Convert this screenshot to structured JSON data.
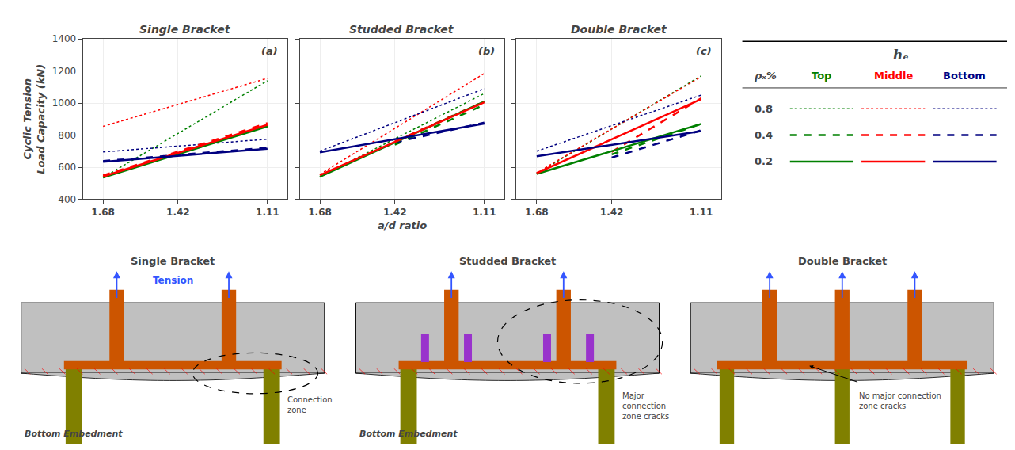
{
  "chart_data": [
    {
      "type": "line",
      "title": "Single Bracket",
      "annotation": "(a)",
      "xlim": [
        1.75,
        1.04
      ],
      "xticks": [
        1.68,
        1.42,
        1.11
      ],
      "ylim": [
        400,
        1400
      ],
      "yticks": [
        400,
        600,
        800,
        1000,
        1200,
        1400
      ],
      "ylabel": "Cyclic Tension\nLoad Capacity (kN)",
      "grid": true,
      "series": [
        {
          "color": "#008000",
          "line_style": "dotted",
          "x": [
            1.68,
            1.11
          ],
          "values": [
            535,
            1140
          ]
        },
        {
          "color": "#FF0000",
          "line_style": "dotted",
          "x": [
            1.68,
            1.11
          ],
          "values": [
            855,
            1155
          ]
        },
        {
          "color": "#000080",
          "line_style": "dotted",
          "x": [
            1.68,
            1.11
          ],
          "values": [
            695,
            775
          ]
        },
        {
          "color": "#008000",
          "line_style": "dashed",
          "x": [
            1.68,
            1.11
          ],
          "values": [
            540,
            860
          ]
        },
        {
          "color": "#FF0000",
          "line_style": "dashed",
          "x": [
            1.68,
            1.11
          ],
          "values": [
            548,
            875
          ]
        },
        {
          "color": "#000080",
          "line_style": "dashed",
          "x": [
            1.68,
            1.11
          ],
          "values": [
            638,
            722
          ]
        },
        {
          "color": "#008000",
          "line_style": "solid",
          "x": [
            1.68,
            1.11
          ],
          "values": [
            536,
            855
          ]
        },
        {
          "color": "#FF0000",
          "line_style": "solid",
          "x": [
            1.68,
            1.11
          ],
          "values": [
            542,
            865
          ]
        },
        {
          "color": "#000080",
          "line_style": "solid",
          "x": [
            1.68,
            1.11
          ],
          "values": [
            634,
            715
          ]
        }
      ]
    },
    {
      "type": "line",
      "title": "Studded Bracket",
      "annotation": "(b)",
      "xlim": [
        1.75,
        1.04
      ],
      "xticks": [
        1.68,
        1.42,
        1.11
      ],
      "ylim": [
        400,
        1400
      ],
      "yticks": [
        400,
        600,
        800,
        1000,
        1200,
        1400
      ],
      "grid": true,
      "tick_labels": "x",
      "series": [
        {
          "color": "#008000",
          "line_style": "dotted",
          "x": [
            1.68,
            1.11
          ],
          "values": [
            540,
            1060
          ]
        },
        {
          "color": "#FF0000",
          "line_style": "dotted",
          "x": [
            1.68,
            1.11
          ],
          "values": [
            555,
            1185
          ]
        },
        {
          "color": "#000080",
          "line_style": "dotted",
          "x": [
            1.68,
            1.11
          ],
          "values": [
            700,
            1090
          ]
        },
        {
          "color": "#008000",
          "line_style": "dashed",
          "x": [
            1.42,
            1.11
          ],
          "values": [
            740,
            990
          ]
        },
        {
          "color": "#FF0000",
          "line_style": "dashed",
          "x": [
            1.42,
            1.11
          ],
          "values": [
            760,
            1010
          ]
        },
        {
          "color": "#000080",
          "line_style": "dashed",
          "x": [
            1.42,
            1.11
          ],
          "values": [
            755,
            878
          ]
        },
        {
          "color": "#008000",
          "line_style": "solid",
          "x": [
            1.68,
            1.11
          ],
          "values": [
            540,
            1010
          ]
        },
        {
          "color": "#FF0000",
          "line_style": "solid",
          "x": [
            1.68,
            1.11
          ],
          "values": [
            550,
            1005
          ]
        },
        {
          "color": "#000080",
          "line_style": "solid",
          "x": [
            1.68,
            1.11
          ],
          "values": [
            693,
            872
          ]
        }
      ]
    },
    {
      "type": "line",
      "title": "Double Bracket",
      "annotation": "(c)",
      "xlim": [
        1.75,
        1.04
      ],
      "xticks": [
        1.68,
        1.42,
        1.11
      ],
      "ylim": [
        400,
        1400
      ],
      "yticks": [
        400,
        600,
        800,
        1000,
        1200,
        1400
      ],
      "grid": true,
      "tick_labels": "x",
      "series": [
        {
          "color": "#008000",
          "line_style": "dotted",
          "x": [
            1.68,
            1.11
          ],
          "values": [
            560,
            1170
          ]
        },
        {
          "color": "#FF0000",
          "line_style": "dotted",
          "x": [
            1.68,
            1.11
          ],
          "values": [
            565,
            1165
          ]
        },
        {
          "color": "#000080",
          "line_style": "dotted",
          "x": [
            1.68,
            1.11
          ],
          "values": [
            700,
            1050
          ]
        },
        {
          "color": "#008000",
          "line_style": "dashed",
          "x": [
            1.42,
            1.11
          ],
          "values": [
            680,
            870
          ]
        },
        {
          "color": "#FF0000",
          "line_style": "dashed",
          "x": [
            1.42,
            1.11
          ],
          "values": [
            695,
            1030
          ]
        },
        {
          "color": "#000080",
          "line_style": "dashed",
          "x": [
            1.42,
            1.11
          ],
          "values": [
            660,
            830
          ]
        },
        {
          "color": "#008000",
          "line_style": "solid",
          "x": [
            1.68,
            1.11
          ],
          "values": [
            558,
            870
          ]
        },
        {
          "color": "#FF0000",
          "line_style": "solid",
          "x": [
            1.68,
            1.11
          ],
          "values": [
            563,
            1025
          ]
        },
        {
          "color": "#000080",
          "line_style": "solid",
          "x": [
            1.68,
            1.11
          ],
          "values": [
            668,
            825
          ]
        }
      ]
    }
  ],
  "xlabel": "a/d ratio",
  "legend_table": {
    "header": "hₑ",
    "row_header": "ρₓ%",
    "columns": [
      "Top",
      "Middle",
      "Bottom"
    ],
    "colors": [
      "#008000",
      "#FF0000",
      "#000080"
    ],
    "rows": [
      "0.8",
      "0.4",
      "0.2"
    ],
    "line_styles": [
      "dotted",
      "dashed",
      "solid"
    ]
  },
  "diagram_colors": {
    "pile": "#808000",
    "bracket": "#CC5500",
    "concrete": "#c0c0c0",
    "arrow": "#3355FF",
    "tension": "#3355FF",
    "crack": "#FF0000",
    "stud": "#9933CC"
  },
  "diagrams": [
    {
      "type": "single",
      "title": "Single Bracket",
      "label": "Tension",
      "embed": "Bottom Embedment",
      "note": "Connection\nzone"
    },
    {
      "type": "studded",
      "title": "Studded Bracket",
      "embed": "Bottom Embedment",
      "note": "Major\nconnection\nzone cracks"
    },
    {
      "type": "double",
      "title": "Double Bracket",
      "note": "No major connection\nzone cracks"
    }
  ]
}
